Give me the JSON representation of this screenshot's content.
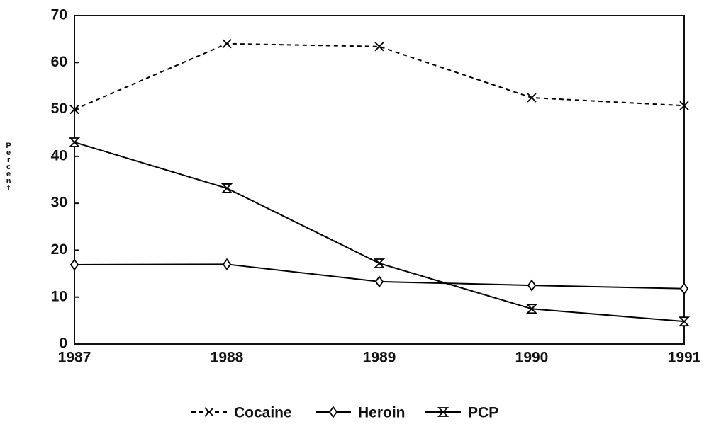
{
  "chart_data": {
    "type": "line",
    "y_label": "Percent",
    "categories": [
      "1987",
      "1988",
      "1989",
      "1990",
      "1991"
    ],
    "series": [
      {
        "name": "Cocaine",
        "color": "#000000",
        "dashed": true,
        "marker": "x",
        "values": [
          50,
          64,
          63.4,
          52.5,
          50.8
        ]
      },
      {
        "name": "Heroin",
        "color": "#000000",
        "dashed": false,
        "marker": "diamond",
        "values": [
          16.9,
          17,
          13.3,
          12.5,
          11.8
        ]
      },
      {
        "name": "PCP",
        "color": "#000000",
        "dashed": false,
        "marker": "hourglass",
        "values": [
          43,
          33.2,
          17.2,
          7.5,
          4.8
        ]
      }
    ],
    "ylim": [
      0,
      70
    ],
    "yticks": [
      0,
      10,
      20,
      30,
      40,
      50,
      60,
      70
    ],
    "grid": false,
    "legend": "bottom"
  }
}
